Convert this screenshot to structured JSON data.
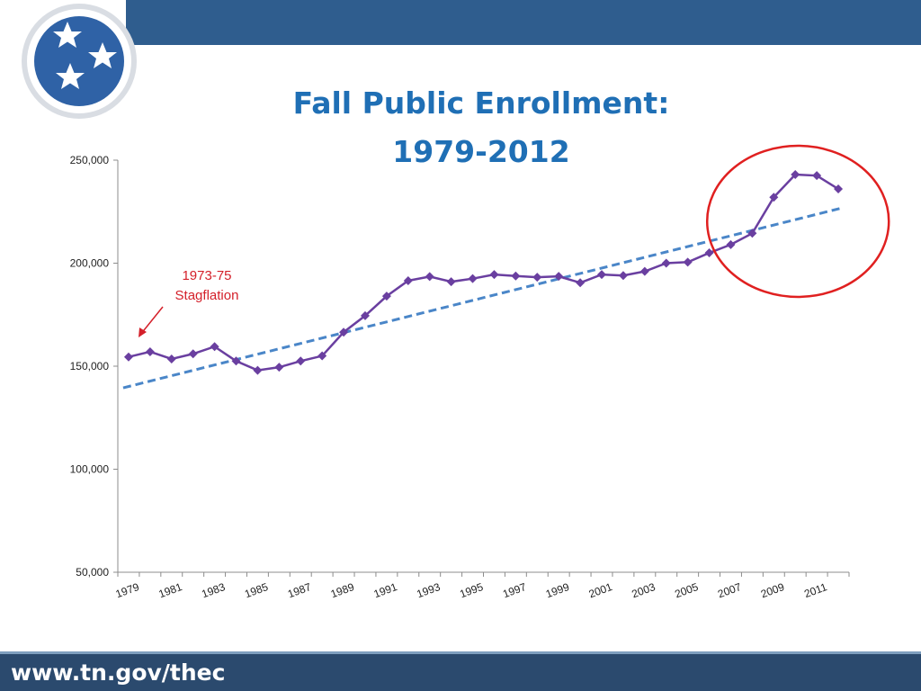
{
  "page": {
    "footer_url": "www.tn.gov/thec",
    "colors": {
      "header_bar": "#2f5d8e",
      "footer_bar": "#2b4a6e",
      "title": "#1f6fb5",
      "series": "#6a3fa0",
      "trendline": "#4a86c8",
      "highlight": "#e02020",
      "annotation": "#d4202a"
    },
    "logo": {
      "icon": "tennessee-tri-star-logo-icon"
    }
  },
  "chart_data": {
    "type": "line",
    "title": [
      "Fall Public Enrollment:",
      "1979-2012"
    ],
    "xlabel": "",
    "ylabel": "",
    "x": [
      1979,
      1980,
      1981,
      1982,
      1983,
      1984,
      1985,
      1986,
      1987,
      1988,
      1989,
      1990,
      1991,
      1992,
      1993,
      1994,
      1995,
      1996,
      1997,
      1998,
      1999,
      2000,
      2001,
      2002,
      2003,
      2004,
      2005,
      2006,
      2007,
      2008,
      2009,
      2010,
      2011,
      2012
    ],
    "x_tick_labels": [
      "1979",
      "1981",
      "1983",
      "1985",
      "1987",
      "1989",
      "1991",
      "1993",
      "1995",
      "1997",
      "1999",
      "2001",
      "2003",
      "2005",
      "2007",
      "2009",
      "2011"
    ],
    "ylim": [
      50000,
      250000
    ],
    "y_tick_labels": [
      "50,000",
      "100,000",
      "150,000",
      "200,000",
      "250,000"
    ],
    "series": [
      {
        "values": [
          154500,
          157000,
          153500,
          156000,
          159500,
          152500,
          148000,
          149500,
          152500,
          155000,
          166500,
          174500,
          184000,
          191500,
          193500,
          191000,
          192500,
          194500,
          193800,
          193200,
          193600,
          190500,
          194500,
          194000,
          196000,
          200000,
          200500,
          205000,
          209000,
          214500,
          232000,
          243000,
          242500,
          236000
        ]
      }
    ],
    "trendline": {
      "style": "dashed",
      "start": 139500,
      "end": 227000
    },
    "annotations": [
      {
        "text_lines": [
          "1973-75",
          "Stagflation"
        ]
      }
    ],
    "highlight": {
      "shape": "ellipse",
      "years": [
        2008,
        2012
      ]
    },
    "grid": false,
    "legend": "none"
  }
}
